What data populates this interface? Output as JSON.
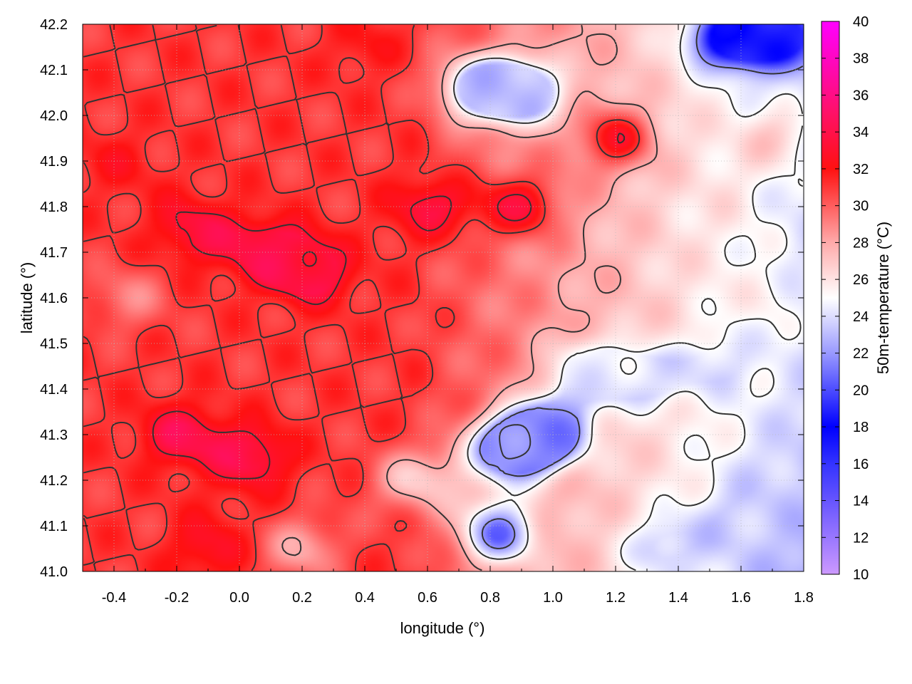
{
  "chart_data": {
    "type": "heatmap",
    "title": "",
    "xlabel": "longitude (°)",
    "ylabel": "latitude (°)",
    "colorbar_label": "50m-temperature (°C)",
    "xlim": [
      -0.5,
      1.8
    ],
    "ylim": [
      41.0,
      42.2
    ],
    "clim": [
      10,
      40
    ],
    "x_ticks": [
      -0.4,
      -0.2,
      0.0,
      0.2,
      0.4,
      0.6,
      0.8,
      1.0,
      1.2,
      1.4,
      1.6,
      1.8
    ],
    "x_tick_labels": [
      "-0.4",
      "-0.2",
      "0.0",
      "0.2",
      "0.4",
      "0.6",
      "0.8",
      "1.0",
      "1.2",
      "1.4",
      "1.6",
      "1.8"
    ],
    "y_ticks": [
      41.0,
      41.1,
      41.2,
      41.3,
      41.4,
      41.5,
      41.6,
      41.7,
      41.8,
      41.9,
      42.0,
      42.1,
      42.2
    ],
    "y_tick_labels": [
      "41.0",
      "41.1",
      "41.2",
      "41.3",
      "41.4",
      "41.5",
      "41.6",
      "41.7",
      "41.8",
      "41.9",
      "42.0",
      "42.1",
      "42.2"
    ],
    "colorbar_ticks": [
      10,
      12,
      14,
      16,
      18,
      20,
      22,
      24,
      26,
      28,
      30,
      32,
      34,
      36,
      38,
      40
    ],
    "colorbar_tick_labels": [
      "10",
      "12",
      "14",
      "16",
      "18",
      "20",
      "22",
      "24",
      "26",
      "28",
      "30",
      "32",
      "34",
      "36",
      "38",
      "40"
    ],
    "colormap": [
      {
        "value": 10,
        "color": "#cc99ff"
      },
      {
        "value": 16,
        "color": "#3333ff"
      },
      {
        "value": 18,
        "color": "#0000ff"
      },
      {
        "value": 22,
        "color": "#9999ff"
      },
      {
        "value": 25,
        "color": "#ffffff"
      },
      {
        "value": 28,
        "color": "#ffaaaa"
      },
      {
        "value": 32,
        "color": "#ff1111"
      },
      {
        "value": 35,
        "color": "#ff1166"
      },
      {
        "value": 40,
        "color": "#ff00ff"
      }
    ],
    "grid": true,
    "contours": true,
    "contour_color": "#333333",
    "hotspots": [
      {
        "lon": -0.2,
        "lat": 41.3,
        "temp": 34
      },
      {
        "lon": 0.05,
        "lat": 41.25,
        "temp": 34
      },
      {
        "lon": 0.1,
        "lat": 41.7,
        "temp": 34
      },
      {
        "lon": -0.15,
        "lat": 41.75,
        "temp": 33.5
      },
      {
        "lon": 0.25,
        "lat": 41.65,
        "temp": 33.5
      },
      {
        "lon": 0.6,
        "lat": 41.8,
        "temp": 33.5
      },
      {
        "lon": 0.9,
        "lat": 41.8,
        "temp": 33
      },
      {
        "lon": 1.2,
        "lat": 41.95,
        "temp": 32.5
      },
      {
        "lon": -0.4,
        "lat": 41.9,
        "temp": 32
      },
      {
        "lon": -0.1,
        "lat": 41.05,
        "temp": 33
      },
      {
        "lon": 0.4,
        "lat": 42.15,
        "temp": 32
      }
    ],
    "coolspots": [
      {
        "lon": 1.0,
        "lat": 41.3,
        "temp": 21
      },
      {
        "lon": 0.85,
        "lat": 41.27,
        "temp": 22
      },
      {
        "lon": 0.83,
        "lat": 41.08,
        "temp": 21
      },
      {
        "lon": 1.6,
        "lat": 41.1,
        "temp": 23.5
      },
      {
        "lon": 1.35,
        "lat": 41.05,
        "temp": 23.5
      },
      {
        "lon": 1.75,
        "lat": 41.2,
        "temp": 23.5
      },
      {
        "lon": 1.55,
        "lat": 42.17,
        "temp": 18
      },
      {
        "lon": 1.75,
        "lat": 42.17,
        "temp": 19
      },
      {
        "lon": 0.93,
        "lat": 42.05,
        "temp": 23
      },
      {
        "lon": 0.76,
        "lat": 42.06,
        "temp": 23
      },
      {
        "lon": 1.55,
        "lat": 41.45,
        "temp": 24
      },
      {
        "lon": 1.3,
        "lat": 41.42,
        "temp": 24
      },
      {
        "lon": 1.5,
        "lat": 41.8,
        "temp": 26
      },
      {
        "lon": 1.65,
        "lat": 41.6,
        "temp": 25.5
      },
      {
        "lon": 1.1,
        "lat": 41.45,
        "temp": 25
      },
      {
        "lon": 0.55,
        "lat": 41.2,
        "temp": 27
      },
      {
        "lon": 0.2,
        "lat": 41.05,
        "temp": 28
      },
      {
        "lon": -0.35,
        "lat": 41.6,
        "temp": 29
      },
      {
        "lon": 1.7,
        "lat": 41.95,
        "temp": 27
      }
    ]
  }
}
